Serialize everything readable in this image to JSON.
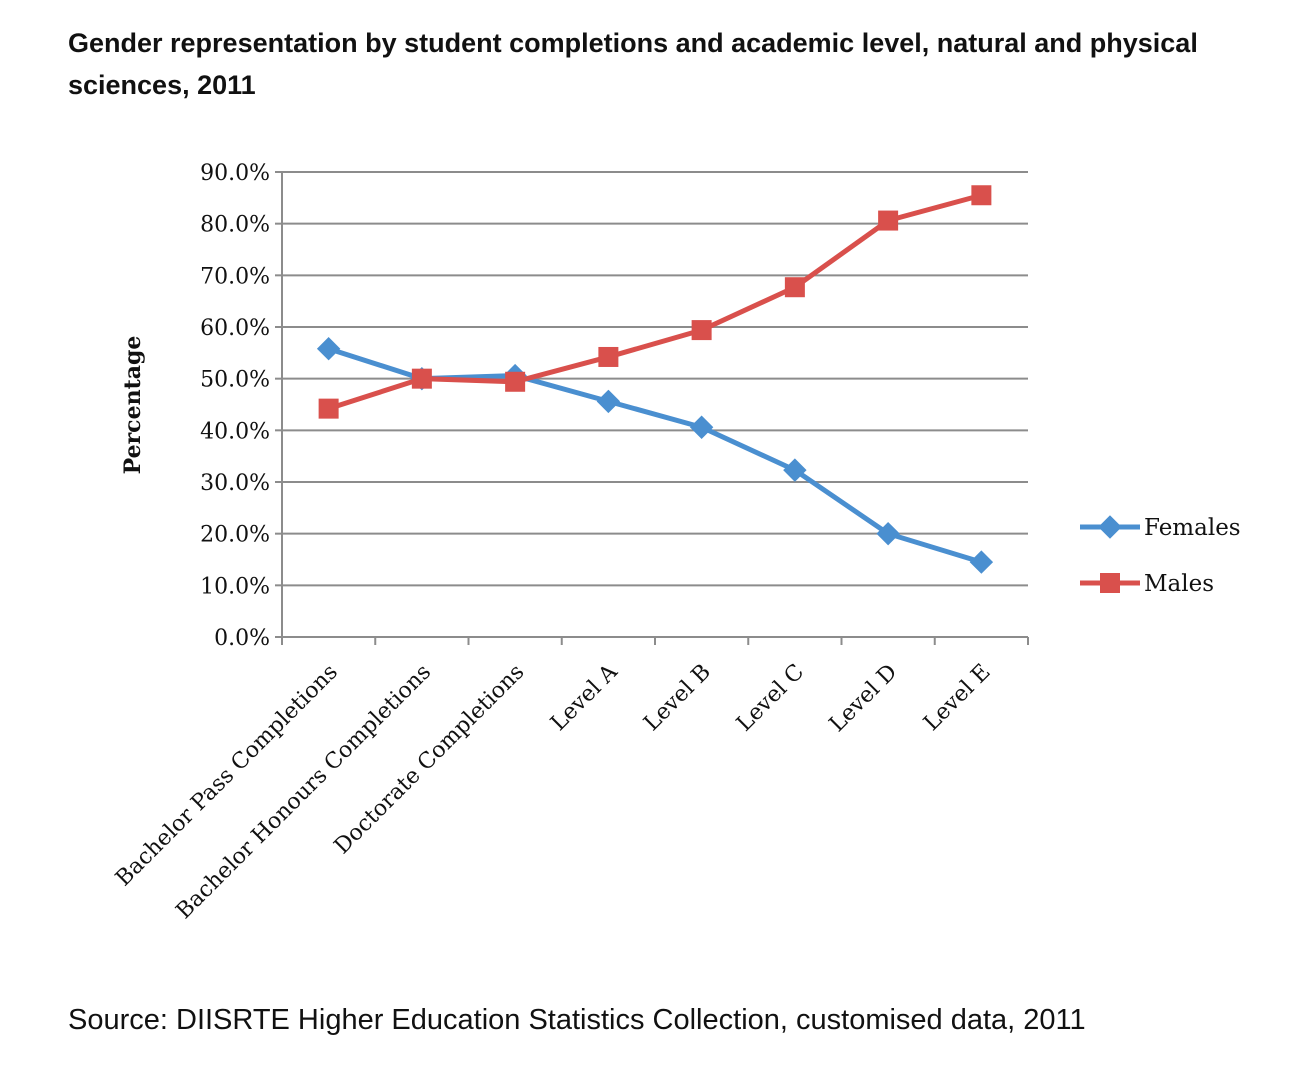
{
  "chart_data": {
    "type": "line",
    "title": "Gender representation by student completions and academic level, natural and physical sciences, 2011",
    "xlabel": "",
    "ylabel": "Percentage",
    "ylim": [
      0,
      90
    ],
    "yticks": [
      "0.0%",
      "10.0%",
      "20.0%",
      "30.0%",
      "40.0%",
      "50.0%",
      "60.0%",
      "70.0%",
      "80.0%",
      "90.0%"
    ],
    "categories": [
      "Bachelor Pass Completions",
      "Bachelor Honours Completions",
      "Doctorate Completions",
      "Level A",
      "Level B",
      "Level C",
      "Level D",
      "Level E"
    ],
    "series": [
      {
        "name": "Females",
        "color": "#4a8fd0",
        "marker": "diamond",
        "values": [
          55.8,
          50.0,
          50.6,
          45.6,
          40.6,
          32.3,
          20.0,
          14.5
        ]
      },
      {
        "name": "Males",
        "color": "#d9504c",
        "marker": "square",
        "values": [
          44.2,
          50.0,
          49.4,
          54.2,
          59.4,
          67.7,
          80.6,
          85.5
        ]
      }
    ],
    "grid": true,
    "legend": "right",
    "source": "Source: DIISRTE Higher Education Statistics Collection, customised data, 2011"
  }
}
